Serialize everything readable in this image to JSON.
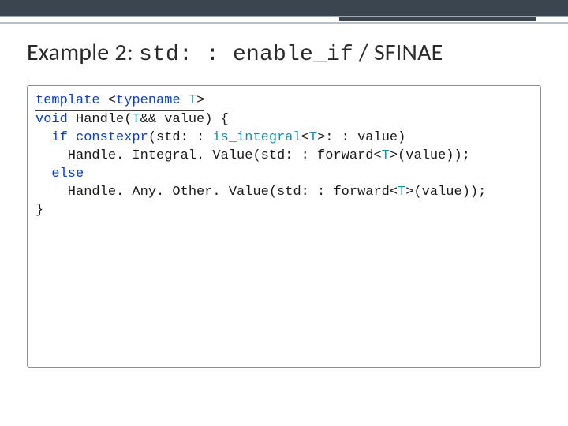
{
  "colors": {
    "top_bar_bg": "#3a4550",
    "top_bar_border": "#9aa5af",
    "mid_line": "#b8c0c7",
    "title_text": "#2a2a2a",
    "rule": "#8a8f95",
    "code_border": "#8a8f95",
    "code_default": "#1a1a1a",
    "kw": "#0a3fc7",
    "type": "#1a8fa6",
    "strike": "#404040"
  },
  "title": {
    "prefix": "Example 2: ",
    "mono": "std: : enable_if",
    "suffix": " / SFINAE"
  },
  "code": {
    "fontsize": 17,
    "lines": [
      [
        {
          "t": "template ",
          "cls": "kw",
          "u": true
        },
        {
          "t": "<",
          "u": true
        },
        {
          "t": "typename",
          "cls": "kw",
          "u": true
        },
        {
          "t": " ",
          "u": true
        },
        {
          "t": "T",
          "cls": "type",
          "u": true
        },
        {
          "t": ">",
          "u": true
        }
      ],
      [
        {
          "t": "void",
          "cls": "kw"
        },
        {
          "t": " Handle("
        },
        {
          "t": "T",
          "cls": "type"
        },
        {
          "t": "&& value) {"
        }
      ],
      [
        {
          "t": "  "
        },
        {
          "t": "if constexpr",
          "cls": "kw"
        },
        {
          "t": "(std: : "
        },
        {
          "t": "is_integral",
          "cls": "type"
        },
        {
          "t": "<"
        },
        {
          "t": "T",
          "cls": "type"
        },
        {
          "t": ">: : value)"
        }
      ],
      [
        {
          "t": "    Handle. Integral. Value(std: : forward<"
        },
        {
          "t": "T",
          "cls": "type"
        },
        {
          "t": ">(value));"
        }
      ],
      [
        {
          "t": "  "
        },
        {
          "t": "else",
          "cls": "kw"
        }
      ],
      [
        {
          "t": "    Handle. Any. Other. Value(std: : forward<"
        },
        {
          "t": "T",
          "cls": "type"
        },
        {
          "t": ">(value));"
        }
      ],
      [
        {
          "t": "}"
        }
      ]
    ]
  }
}
